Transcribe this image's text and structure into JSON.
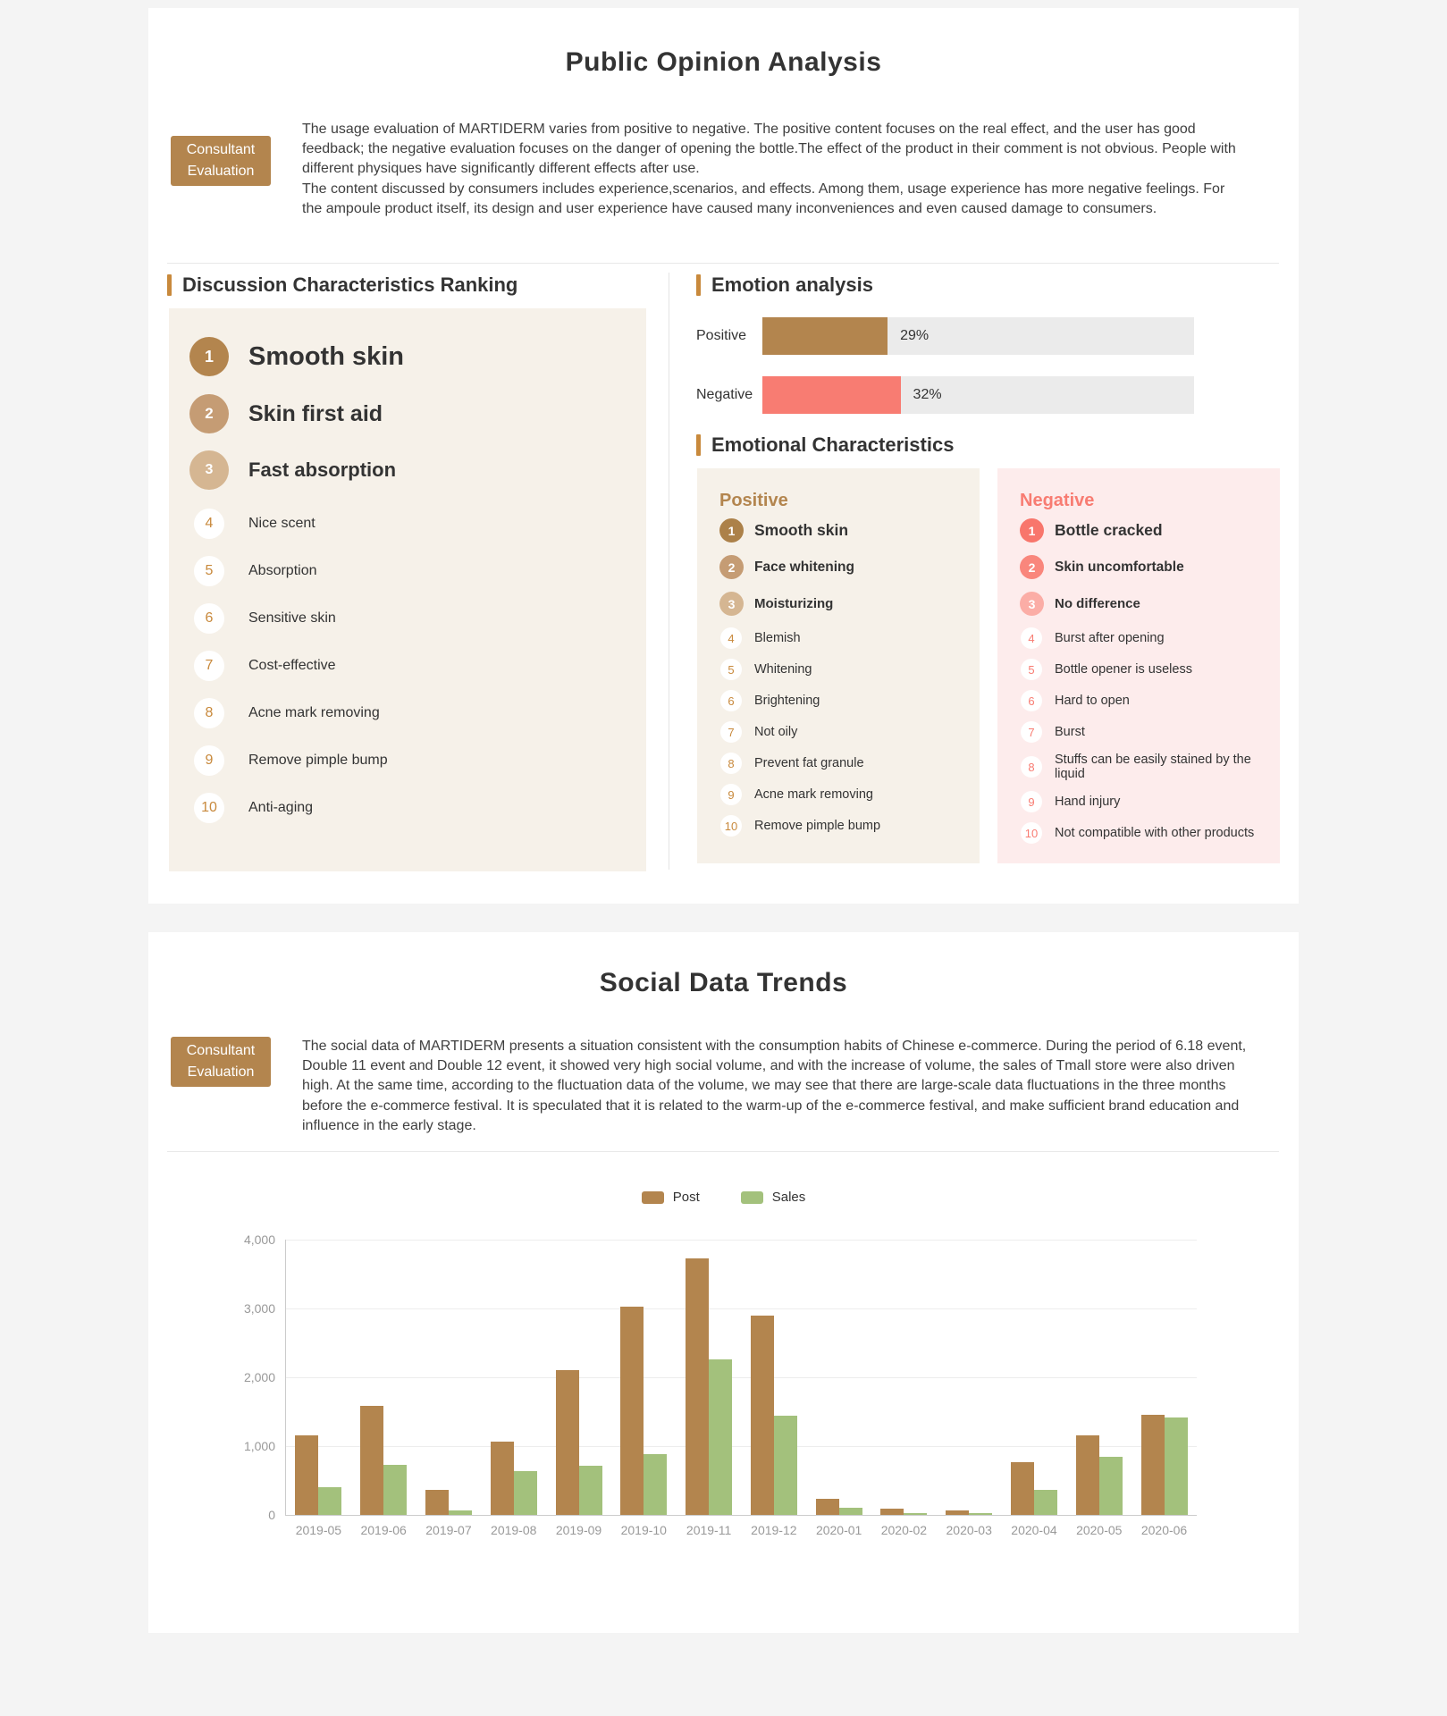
{
  "colors": {
    "accent_brown": "#b3854e",
    "heading_bar": "#c8893c",
    "negative_salmon": "#f87c72",
    "sales_green": "#a3c17c",
    "panel_beige": "#f6f1e9",
    "panel_pink": "#fdecec"
  },
  "opinion": {
    "title": "Public Opinion Analysis",
    "badge": {
      "line1": "Consultant",
      "line2": "Evaluation"
    },
    "summary": [
      "The usage evaluation of MARTIDERM varies from positive to negative. The positive content focuses on the real effect, and the user has good feedback; the negative evaluation focuses on the danger of opening the bottle.The effect of the product in their comment is not obvious. People with different physiques have significantly different effects after use.",
      "The content discussed by consumers includes experience,scenarios, and effects. Among them, usage experience has more negative feelings. For the ampoule product itself, its design and user experience have caused many inconveniences and even caused damage to consumers."
    ],
    "ranking": {
      "heading": "Discussion Characteristics Ranking",
      "items": [
        "Smooth skin",
        "Skin first aid",
        "Fast absorption",
        "Nice scent",
        "Absorption",
        "Sensitive skin",
        "Cost-effective",
        "Acne mark removing",
        "Remove pimple bump",
        "Anti-aging"
      ]
    },
    "emotion": {
      "heading": "Emotion analysis",
      "bars": [
        {
          "label": "Positive",
          "percent": 29,
          "percent_label": "29%",
          "color": "#b3854e"
        },
        {
          "label": "Negative",
          "percent": 32,
          "percent_label": "32%",
          "color": "#f87c72"
        }
      ]
    },
    "characteristics": {
      "heading": "Emotional Characteristics",
      "positive": {
        "title": "Positive",
        "items": [
          "Smooth skin",
          "Face whitening",
          "Moisturizing",
          "Blemish",
          "Whitening",
          "Brightening",
          "Not oily",
          "Prevent fat granule",
          "Acne mark removing",
          "Remove pimple bump"
        ]
      },
      "negative": {
        "title": "Negative",
        "items": [
          "Bottle cracked",
          "Skin uncomfortable",
          "No difference",
          "Burst after opening",
          "Bottle opener is useless",
          "Hard to open",
          "Burst",
          "Stuffs can be easily stained by the liquid",
          "Hand injury",
          "Not compatible with other products"
        ]
      }
    }
  },
  "social": {
    "title": "Social Data Trends",
    "badge": {
      "line1": "Consultant",
      "line2": "Evaluation"
    },
    "summary": [
      "The social data of MARTIDERM presents a situation consistent with the consumption habits of Chinese e-commerce. During the period of 6.18 event, Double 11 event and Double 12 event, it showed very high social volume, and with the increase of volume, the sales of Tmall store were also driven high. At the same time, according to the fluctuation data of the volume, we may see that there are large-scale data fluctuations in the three months before the e-commerce festival. It is speculated that it is related to the warm-up of the e-commerce festival, and make sufficient brand education and influence in the early stage."
    ]
  },
  "chart_data": {
    "type": "bar",
    "title": "",
    "xlabel": "",
    "ylabel": "",
    "categories": [
      "2019-05",
      "2019-06",
      "2019-07",
      "2019-08",
      "2019-09",
      "2019-10",
      "2019-11",
      "2019-12",
      "2020-01",
      "2020-02",
      "2020-03",
      "2020-04",
      "2020-05",
      "2020-06"
    ],
    "series": [
      {
        "name": "Post",
        "color": "#b3854e",
        "values": [
          1150,
          1580,
          370,
          1070,
          2110,
          3030,
          3730,
          2890,
          240,
          90,
          60,
          770,
          1150,
          1460
        ]
      },
      {
        "name": "Sales",
        "color": "#a3c17c",
        "values": [
          400,
          730,
          70,
          640,
          720,
          880,
          2260,
          1440,
          100,
          30,
          25,
          360,
          840,
          1410
        ]
      }
    ],
    "ylim": [
      0,
      4000
    ],
    "y_tick_step": 1000,
    "grid": true,
    "legend_position": "top"
  }
}
